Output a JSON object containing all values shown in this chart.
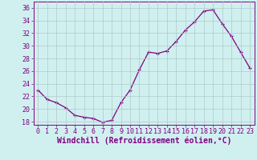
{
  "x": [
    0,
    1,
    2,
    3,
    4,
    5,
    6,
    7,
    8,
    9,
    10,
    11,
    12,
    13,
    14,
    15,
    16,
    17,
    18,
    19,
    20,
    21,
    22,
    23
  ],
  "y": [
    23.0,
    21.5,
    21.0,
    20.2,
    19.0,
    18.7,
    18.5,
    17.9,
    18.2,
    21.0,
    23.0,
    26.2,
    29.0,
    28.8,
    29.2,
    30.7,
    32.5,
    33.8,
    35.5,
    35.7,
    33.5,
    31.5,
    29.0,
    26.5
  ],
  "line_color": "#800080",
  "marker": "+",
  "background_color": "#d0f0f0",
  "grid_color": "#b0c8c8",
  "xlabel": "Windchill (Refroidissement éolien,°C)",
  "xlabel_color": "#800080",
  "xlabel_fontsize": 7,
  "yticks": [
    18,
    20,
    22,
    24,
    26,
    28,
    30,
    32,
    34,
    36
  ],
  "xticks": [
    0,
    1,
    2,
    3,
    4,
    5,
    6,
    7,
    8,
    9,
    10,
    11,
    12,
    13,
    14,
    15,
    16,
    17,
    18,
    19,
    20,
    21,
    22,
    23
  ],
  "ylim": [
    17.5,
    37.0
  ],
  "xlim": [
    -0.5,
    23.5
  ],
  "tick_fontsize": 6,
  "tick_color": "#800080",
  "spine_color": "#800080"
}
